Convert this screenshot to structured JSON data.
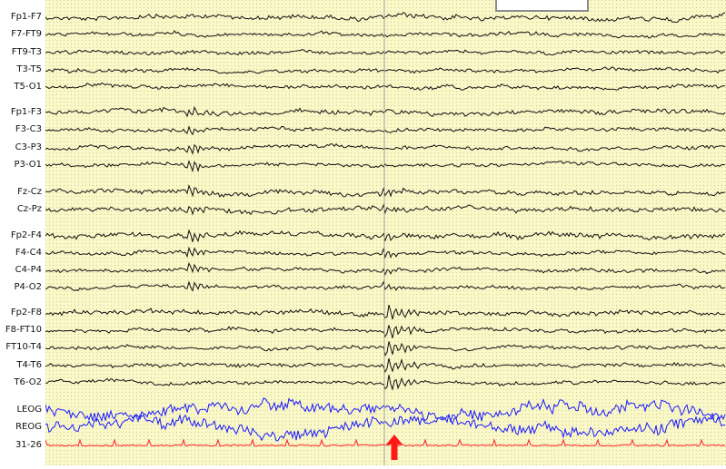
{
  "montage": {
    "channels": [
      {
        "label": "Fp1-F7",
        "color": "#111111",
        "group": 0
      },
      {
        "label": "F7-FT9",
        "color": "#111111",
        "group": 0
      },
      {
        "label": "FT9-T3",
        "color": "#111111",
        "group": 0
      },
      {
        "label": "T3-T5",
        "color": "#111111",
        "group": 0
      },
      {
        "label": "T5-O1",
        "color": "#111111",
        "group": 0
      },
      {
        "label": "Fp1-F3",
        "color": "#111111",
        "group": 1
      },
      {
        "label": "F3-C3",
        "color": "#111111",
        "group": 1
      },
      {
        "label": "C3-P3",
        "color": "#111111",
        "group": 1
      },
      {
        "label": "P3-O1",
        "color": "#111111",
        "group": 1
      },
      {
        "label": "Fz-Cz",
        "color": "#111111",
        "group": 2
      },
      {
        "label": "Cz-Pz",
        "color": "#111111",
        "group": 2
      },
      {
        "label": "Fp2-F4",
        "color": "#111111",
        "group": 3
      },
      {
        "label": "F4-C4",
        "color": "#111111",
        "group": 3
      },
      {
        "label": "C4-P4",
        "color": "#111111",
        "group": 3
      },
      {
        "label": "P4-O2",
        "color": "#111111",
        "group": 3
      },
      {
        "label": "Fp2-F8",
        "color": "#111111",
        "group": 4
      },
      {
        "label": "F8-FT10",
        "color": "#111111",
        "group": 4
      },
      {
        "label": "FT10-T4",
        "color": "#111111",
        "group": 4
      },
      {
        "label": "T4-T6",
        "color": "#111111",
        "group": 4
      },
      {
        "label": "T6-O2",
        "color": "#111111",
        "group": 4
      },
      {
        "label": "LEOG",
        "color": "#1a1aff",
        "group": 5
      },
      {
        "label": "REOG",
        "color": "#1a1aff",
        "group": 5
      },
      {
        "label": "31-26",
        "color": "#ff2020",
        "group": 6
      }
    ]
  },
  "colors": {
    "grid_background": "#fbf8c8",
    "grid_dots": "#c9c99a",
    "eeg_trace": "#111111",
    "eog_trace": "#1a1aff",
    "ecg_trace": "#ff2020",
    "cursor_line": "#a0a0a0",
    "marker_arrow": "#ff1a1a"
  },
  "scale_bar": {
    "icon": "scale-bar"
  },
  "event_marker": {
    "icon": "red-up-arrow-icon"
  }
}
